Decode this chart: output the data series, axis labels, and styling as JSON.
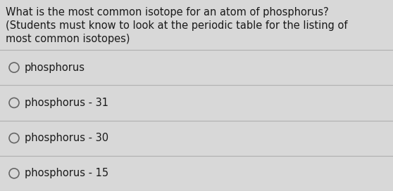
{
  "background_color": "#d8d8d8",
  "question_line1": "What is the most common isotope for an atom of phosphorus?",
  "question_line2": "(Students must know to look at the periodic table for the listing of",
  "question_line3": "most common isotopes)",
  "options": [
    "phosphorus",
    "phosphorus - 31",
    "phosphorus - 30",
    "phosphorus - 15"
  ],
  "text_color": "#1a1a1a",
  "divider_color": "#b0b0b0",
  "circle_color": "#666666",
  "question_fontsize": 10.5,
  "option_fontsize": 10.5,
  "figwidth": 5.58,
  "figheight": 2.72,
  "dpi": 100
}
